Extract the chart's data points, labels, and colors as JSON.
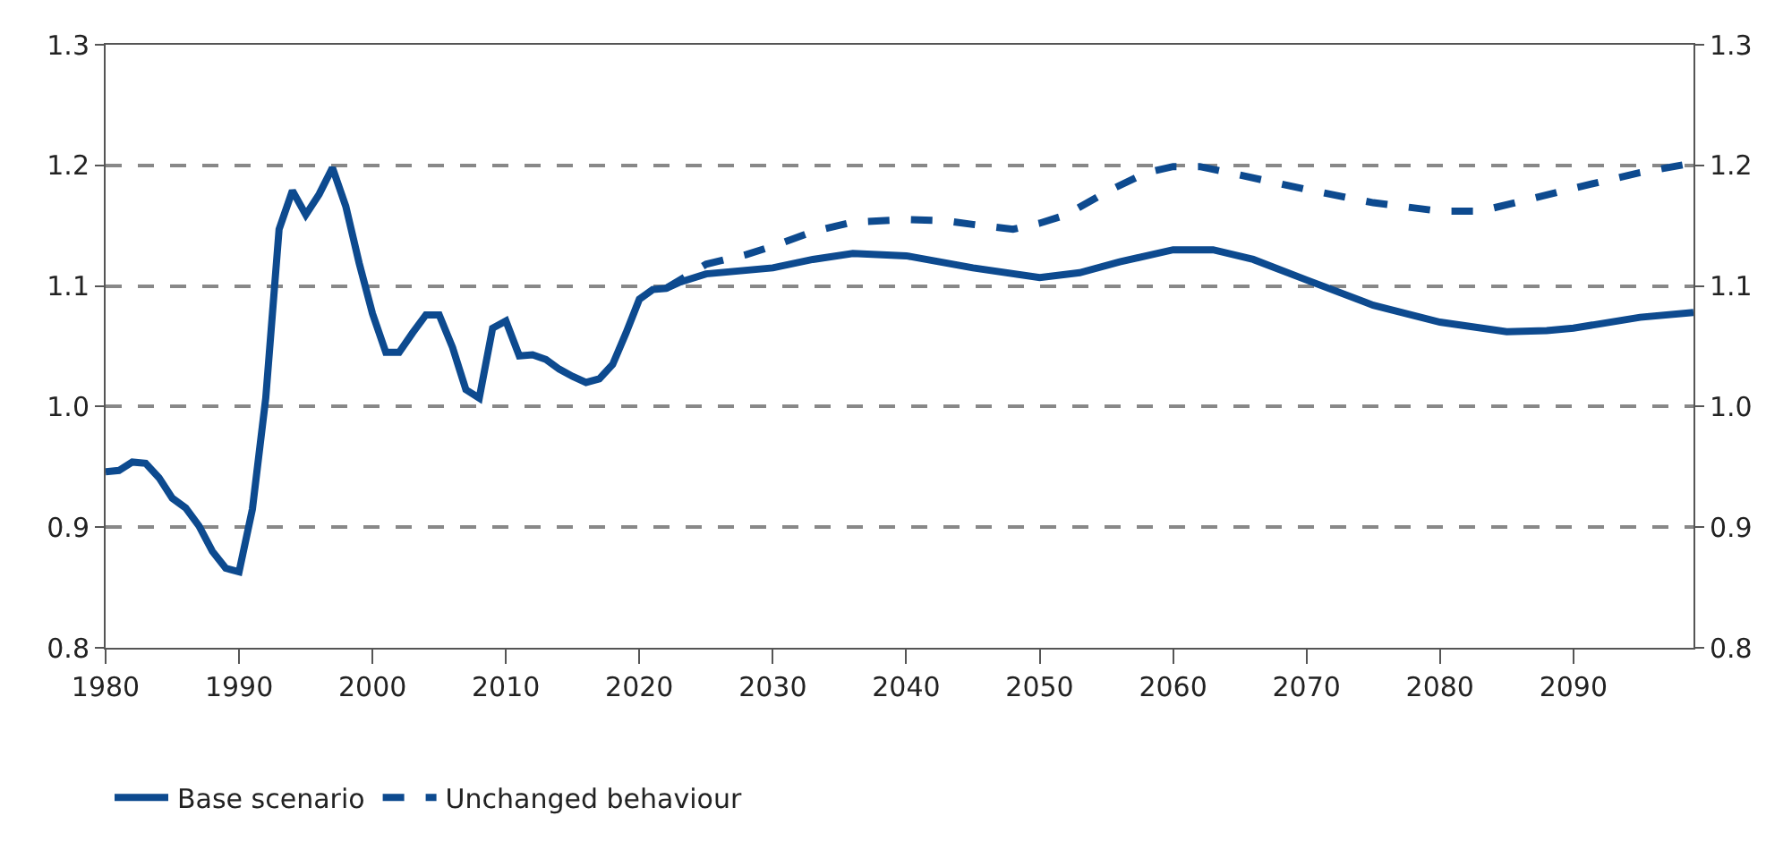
{
  "chart_data": {
    "type": "line",
    "series": [
      {
        "name": "Base scenario",
        "color": "#0d4a8f",
        "line_style": "solid",
        "x": [
          1980,
          1981,
          1982,
          1983,
          1984,
          1985,
          1986,
          1987,
          1988,
          1989,
          1990,
          1991,
          1992,
          1993,
          1994,
          1995,
          1996,
          1997,
          1998,
          1999,
          2000,
          2001,
          2002,
          2003,
          2004,
          2005,
          2006,
          2007,
          2008,
          2009,
          2010,
          2011,
          2012,
          2013,
          2014,
          2015,
          2016,
          2017,
          2018,
          2019,
          2020,
          2021,
          2022,
          2023,
          2025,
          2030,
          2033,
          2036,
          2040,
          2045,
          2050,
          2053,
          2056,
          2060,
          2063,
          2066,
          2070,
          2075,
          2080,
          2085,
          2088,
          2090,
          2095,
          2099
        ],
        "values": [
          0.946,
          0.947,
          0.954,
          0.953,
          0.941,
          0.924,
          0.916,
          0.901,
          0.88,
          0.866,
          0.863,
          0.915,
          1.007,
          1.147,
          1.179,
          1.159,
          1.176,
          1.198,
          1.166,
          1.119,
          1.077,
          1.045,
          1.045,
          1.061,
          1.076,
          1.076,
          1.049,
          1.014,
          1.007,
          1.065,
          1.071,
          1.042,
          1.043,
          1.039,
          1.031,
          1.025,
          1.02,
          1.023,
          1.035,
          1.061,
          1.089,
          1.097,
          1.098,
          1.103,
          1.11,
          1.115,
          1.122,
          1.127,
          1.125,
          1.115,
          1.107,
          1.111,
          1.12,
          1.13,
          1.13,
          1.122,
          1.105,
          1.084,
          1.07,
          1.062,
          1.063,
          1.065,
          1.074,
          1.078
        ]
      },
      {
        "name": "Unchanged behaviour",
        "color": "#0d4a8f",
        "line_style": "dashed",
        "x": [
          2022,
          2025,
          2028,
          2030,
          2033,
          2036,
          2040,
          2043,
          2045,
          2048,
          2050,
          2052,
          2055,
          2058,
          2060,
          2062,
          2065,
          2070,
          2075,
          2080,
          2083,
          2086,
          2090,
          2095,
          2099
        ],
        "values": [
          1.098,
          1.118,
          1.126,
          1.133,
          1.145,
          1.153,
          1.155,
          1.154,
          1.151,
          1.147,
          1.152,
          1.159,
          1.178,
          1.194,
          1.199,
          1.199,
          1.192,
          1.18,
          1.169,
          1.162,
          1.162,
          1.17,
          1.181,
          1.194,
          1.202
        ]
      }
    ],
    "xlim": [
      1980,
      2099
    ],
    "xticks": [
      1980,
      1990,
      2000,
      2010,
      2020,
      2030,
      2040,
      2050,
      2060,
      2070,
      2080,
      2090
    ],
    "ylim": [
      0.8,
      1.3
    ],
    "yticks": [
      {
        "value": 0.8,
        "label": "0.8"
      },
      {
        "value": 0.9,
        "label": "0.9"
      },
      {
        "value": 1.0,
        "label": "1.0"
      },
      {
        "value": 1.1,
        "label": "1.1"
      },
      {
        "value": 1.2,
        "label": "1.2"
      },
      {
        "value": 1.3,
        "label": "1.3"
      }
    ],
    "y2lim": [
      0.8,
      1.3
    ],
    "y2ticks": [
      {
        "value": 0.8,
        "label": "0.8"
      },
      {
        "value": 0.9,
        "label": "0.9"
      },
      {
        "value": 1.0,
        "label": "1.0"
      },
      {
        "value": 1.1,
        "label": "1.1"
      },
      {
        "value": 1.2,
        "label": "1.2"
      },
      {
        "value": 1.3,
        "label": "1.3"
      }
    ],
    "grid": "y",
    "legend": "bottom",
    "marker": "none"
  }
}
